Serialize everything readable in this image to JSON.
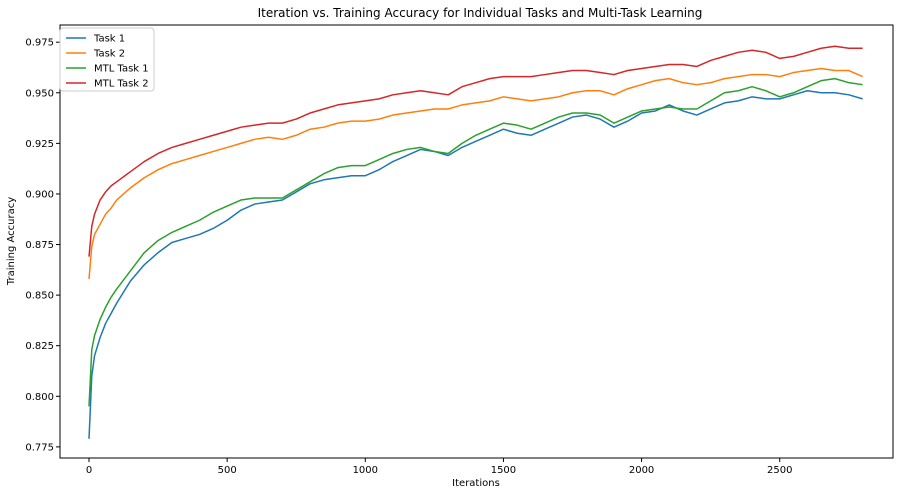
{
  "chart_data": {
    "type": "line",
    "title": "Iteration vs. Training Accuracy for Individual Tasks and Multi-Task Learning",
    "xlabel": "Iterations",
    "ylabel": "Training Accuracy",
    "xlim": [
      -105,
      2910
    ],
    "ylim": [
      0.7695,
      0.9835
    ],
    "x_ticks": [
      0,
      500,
      1000,
      1500,
      2000,
      2500
    ],
    "x_tick_labels": [
      "0",
      "500",
      "1000",
      "1500",
      "2000",
      "2500"
    ],
    "y_ticks": [
      0.775,
      0.8,
      0.825,
      0.85,
      0.875,
      0.9,
      0.925,
      0.95,
      0.975
    ],
    "y_tick_labels": [
      "0.775",
      "0.800",
      "0.825",
      "0.850",
      "0.875",
      "0.900",
      "0.925",
      "0.950",
      "0.975"
    ],
    "grid": false,
    "legend_position": "top-left",
    "series": [
      {
        "name": "Task 1",
        "color": "#1f77b4",
        "x": [
          0,
          10,
          20,
          40,
          60,
          80,
          100,
          150,
          200,
          250,
          300,
          350,
          400,
          450,
          500,
          550,
          600,
          650,
          700,
          750,
          800,
          850,
          900,
          950,
          1000,
          1050,
          1100,
          1150,
          1200,
          1250,
          1300,
          1350,
          1400,
          1450,
          1500,
          1550,
          1600,
          1650,
          1700,
          1750,
          1800,
          1850,
          1900,
          1950,
          2000,
          2050,
          2100,
          2150,
          2200,
          2250,
          2300,
          2350,
          2400,
          2450,
          2500,
          2550,
          2600,
          2650,
          2700,
          2750,
          2800
        ],
        "y": [
          0.779,
          0.81,
          0.82,
          0.829,
          0.836,
          0.841,
          0.846,
          0.857,
          0.865,
          0.871,
          0.876,
          0.878,
          0.88,
          0.883,
          0.887,
          0.892,
          0.895,
          0.896,
          0.897,
          0.901,
          0.905,
          0.907,
          0.908,
          0.909,
          0.909,
          0.912,
          0.916,
          0.919,
          0.922,
          0.921,
          0.919,
          0.923,
          0.926,
          0.929,
          0.932,
          0.93,
          0.929,
          0.932,
          0.935,
          0.938,
          0.939,
          0.937,
          0.933,
          0.936,
          0.94,
          0.941,
          0.944,
          0.941,
          0.939,
          0.942,
          0.945,
          0.946,
          0.948,
          0.947,
          0.947,
          0.949,
          0.951,
          0.95,
          0.95,
          0.949,
          0.947
        ]
      },
      {
        "name": "Task 2",
        "color": "#ff7f0e",
        "x": [
          0,
          10,
          20,
          40,
          60,
          80,
          100,
          150,
          200,
          250,
          300,
          350,
          400,
          450,
          500,
          550,
          600,
          650,
          700,
          750,
          800,
          850,
          900,
          950,
          1000,
          1050,
          1100,
          1150,
          1200,
          1250,
          1300,
          1350,
          1400,
          1450,
          1500,
          1550,
          1600,
          1650,
          1700,
          1750,
          1800,
          1850,
          1900,
          1950,
          2000,
          2050,
          2100,
          2150,
          2200,
          2250,
          2300,
          2350,
          2400,
          2450,
          2500,
          2550,
          2600,
          2650,
          2700,
          2750,
          2800
        ],
        "y": [
          0.858,
          0.874,
          0.88,
          0.885,
          0.89,
          0.893,
          0.897,
          0.903,
          0.908,
          0.912,
          0.915,
          0.917,
          0.919,
          0.921,
          0.923,
          0.925,
          0.927,
          0.928,
          0.927,
          0.929,
          0.932,
          0.933,
          0.935,
          0.936,
          0.936,
          0.937,
          0.939,
          0.94,
          0.941,
          0.942,
          0.942,
          0.944,
          0.945,
          0.946,
          0.948,
          0.947,
          0.946,
          0.947,
          0.948,
          0.95,
          0.951,
          0.951,
          0.949,
          0.952,
          0.954,
          0.956,
          0.957,
          0.955,
          0.954,
          0.955,
          0.957,
          0.958,
          0.959,
          0.959,
          0.958,
          0.96,
          0.961,
          0.962,
          0.961,
          0.961,
          0.958
        ]
      },
      {
        "name": "MTL Task 1",
        "color": "#2ca02c",
        "x": [
          0,
          10,
          20,
          40,
          60,
          80,
          100,
          150,
          200,
          250,
          300,
          350,
          400,
          450,
          500,
          550,
          600,
          650,
          700,
          750,
          800,
          850,
          900,
          950,
          1000,
          1050,
          1100,
          1150,
          1200,
          1250,
          1300,
          1350,
          1400,
          1450,
          1500,
          1550,
          1600,
          1650,
          1700,
          1750,
          1800,
          1850,
          1900,
          1950,
          2000,
          2050,
          2100,
          2150,
          2200,
          2250,
          2300,
          2350,
          2400,
          2450,
          2500,
          2550,
          2600,
          2650,
          2700,
          2750,
          2800
        ],
        "y": [
          0.795,
          0.823,
          0.83,
          0.838,
          0.844,
          0.849,
          0.853,
          0.862,
          0.871,
          0.877,
          0.881,
          0.884,
          0.887,
          0.891,
          0.894,
          0.897,
          0.898,
          0.898,
          0.898,
          0.902,
          0.906,
          0.91,
          0.913,
          0.914,
          0.914,
          0.917,
          0.92,
          0.922,
          0.923,
          0.921,
          0.92,
          0.925,
          0.929,
          0.932,
          0.935,
          0.934,
          0.932,
          0.935,
          0.938,
          0.94,
          0.94,
          0.939,
          0.935,
          0.938,
          0.941,
          0.942,
          0.943,
          0.942,
          0.942,
          0.946,
          0.95,
          0.951,
          0.953,
          0.951,
          0.948,
          0.95,
          0.953,
          0.956,
          0.957,
          0.955,
          0.954
        ]
      },
      {
        "name": "MTL Task 2",
        "color": "#d62728",
        "x": [
          0,
          10,
          20,
          40,
          60,
          80,
          100,
          150,
          200,
          250,
          300,
          350,
          400,
          450,
          500,
          550,
          600,
          650,
          700,
          750,
          800,
          850,
          900,
          950,
          1000,
          1050,
          1100,
          1150,
          1200,
          1250,
          1300,
          1350,
          1400,
          1450,
          1500,
          1550,
          1600,
          1650,
          1700,
          1750,
          1800,
          1850,
          1900,
          1950,
          2000,
          2050,
          2100,
          2150,
          2200,
          2250,
          2300,
          2350,
          2400,
          2450,
          2500,
          2550,
          2600,
          2650,
          2700,
          2750,
          2800
        ],
        "y": [
          0.869,
          0.884,
          0.89,
          0.897,
          0.901,
          0.904,
          0.906,
          0.911,
          0.916,
          0.92,
          0.923,
          0.925,
          0.927,
          0.929,
          0.931,
          0.933,
          0.934,
          0.935,
          0.935,
          0.937,
          0.94,
          0.942,
          0.944,
          0.945,
          0.946,
          0.947,
          0.949,
          0.95,
          0.951,
          0.95,
          0.949,
          0.953,
          0.955,
          0.957,
          0.958,
          0.958,
          0.958,
          0.959,
          0.96,
          0.961,
          0.961,
          0.96,
          0.959,
          0.961,
          0.962,
          0.963,
          0.964,
          0.964,
          0.963,
          0.966,
          0.968,
          0.97,
          0.971,
          0.97,
          0.967,
          0.968,
          0.97,
          0.972,
          0.973,
          0.972,
          0.972
        ]
      }
    ]
  }
}
